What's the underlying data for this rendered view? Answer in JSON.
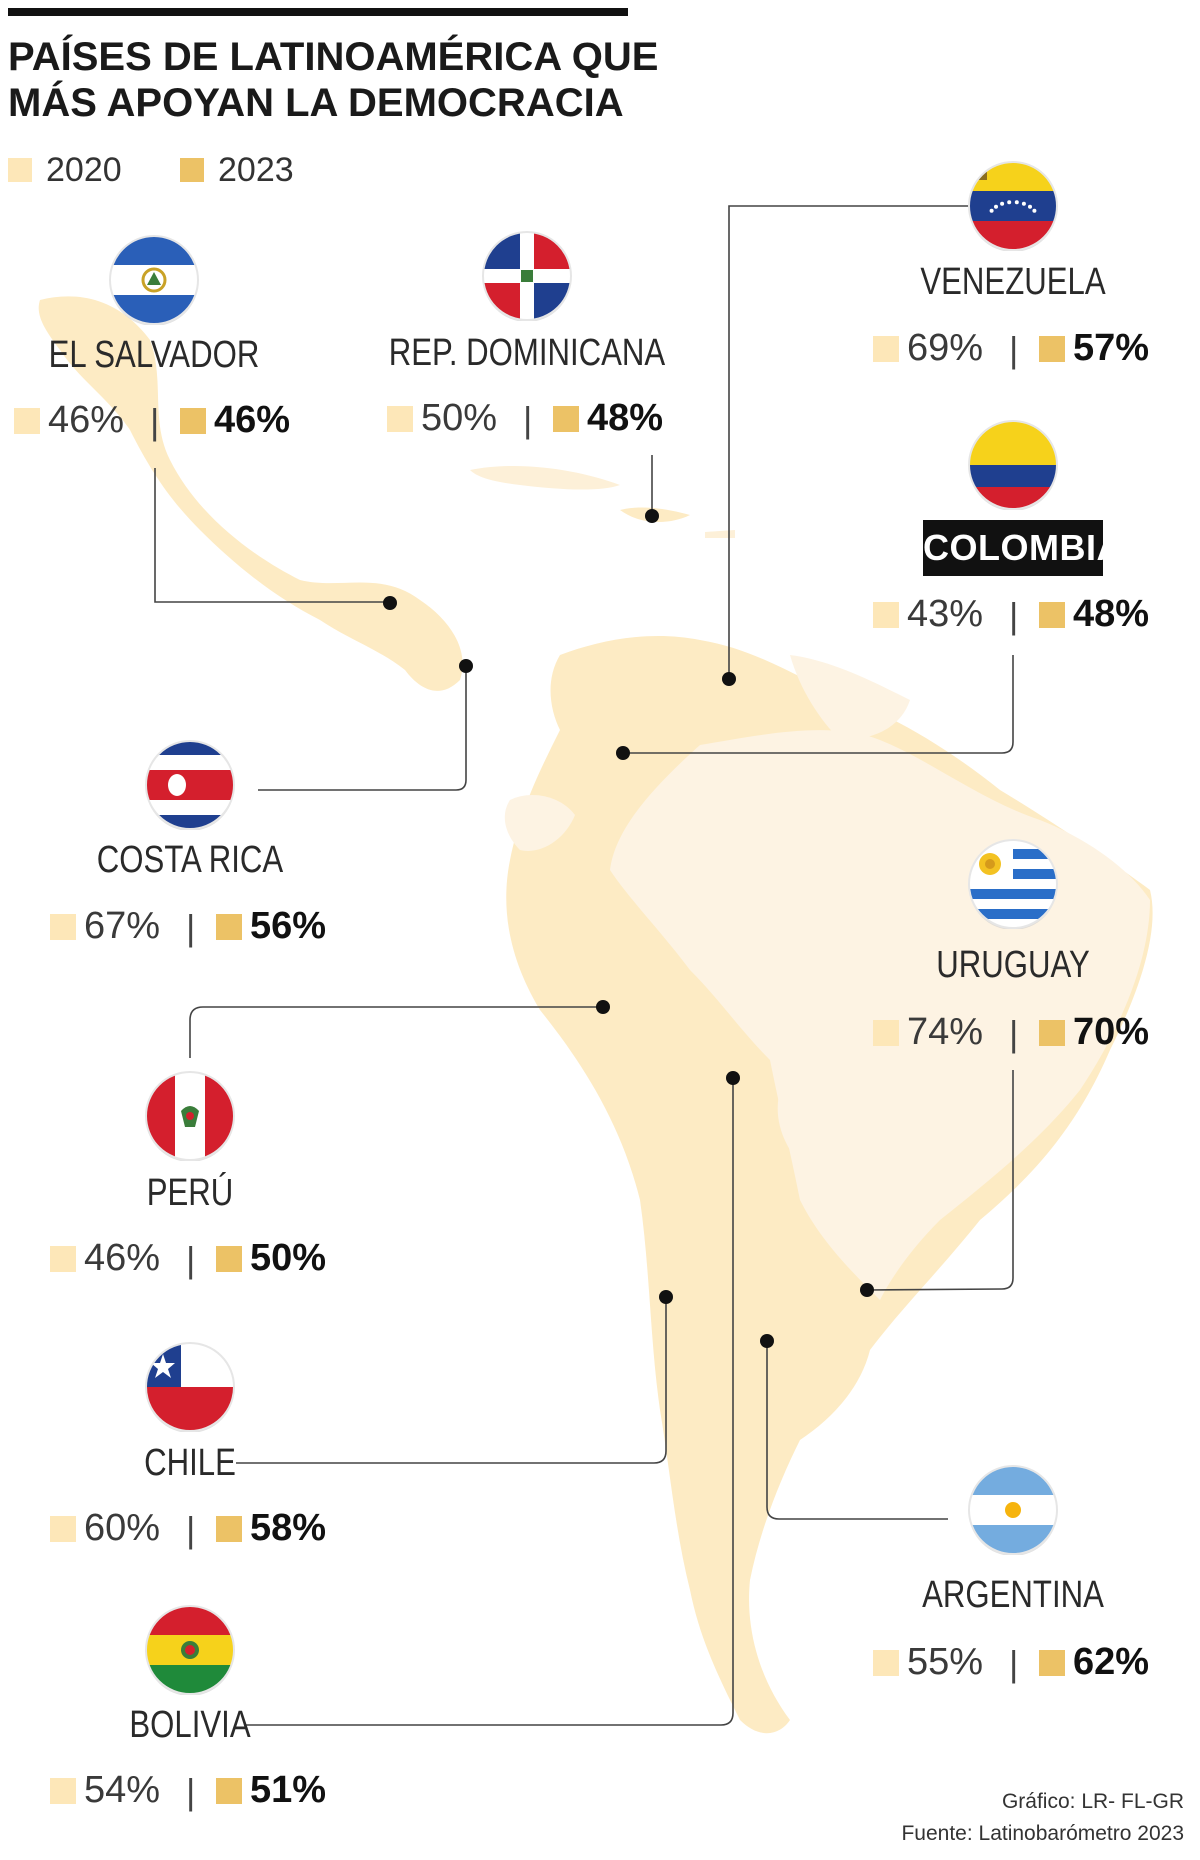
{
  "title_lines": [
    "PAÍSES DE LATINOAMÉRICA QUE",
    "MÁS APOYAN LA DEMOCRACIA"
  ],
  "legend": [
    {
      "label": "2020",
      "color": "#fde7b8"
    },
    {
      "label": "2023",
      "color": "#ecc266"
    }
  ],
  "colors": {
    "map_fill": "#fdebc4",
    "map_fill_light": "#fdf3e3",
    "country_fill": "#fde4ae",
    "leader_line": "#444444",
    "highlight_bg": "#111111"
  },
  "separator": "|",
  "credits": {
    "chart": "Gráfico: LR- FL-GR",
    "source": "Fuente: Latinobarómetro 2023"
  },
  "chart_data": {
    "type": "table",
    "title": "PAÍSES DE LATINOAMÉRICA QUE MÁS APOYAN LA DEMOCRACIA",
    "series_names": [
      "2020",
      "2023"
    ],
    "rows": [
      {
        "country": "EL SALVADOR",
        "y2020": "46%",
        "y2023": "46%",
        "flag": "el-salvador-flag"
      },
      {
        "country": "REP. DOMINICANA",
        "y2020": "50%",
        "y2023": "48%",
        "flag": "dominican-republic-flag"
      },
      {
        "country": "VENEZUELA",
        "y2020": "69%",
        "y2023": "57%",
        "flag": "venezuela-flag"
      },
      {
        "country": "COLOMBIA",
        "y2020": "43%",
        "y2023": "48%",
        "flag": "colombia-flag",
        "highlight": true
      },
      {
        "country": "COSTA RICA",
        "y2020": "67%",
        "y2023": "56%",
        "flag": "costa-rica-flag"
      },
      {
        "country": "URUGUAY",
        "y2020": "74%",
        "y2023": "70%",
        "flag": "uruguay-flag"
      },
      {
        "country": "PERÚ",
        "y2020": "46%",
        "y2023": "50%",
        "flag": "peru-flag"
      },
      {
        "country": "CHILE",
        "y2020": "60%",
        "y2023": "58%",
        "flag": "chile-flag"
      },
      {
        "country": "ARGENTINA",
        "y2020": "55%",
        "y2023": "62%",
        "flag": "argentina-flag"
      },
      {
        "country": "BOLIVIA",
        "y2020": "54%",
        "y2023": "51%",
        "flag": "bolivia-flag"
      }
    ]
  }
}
